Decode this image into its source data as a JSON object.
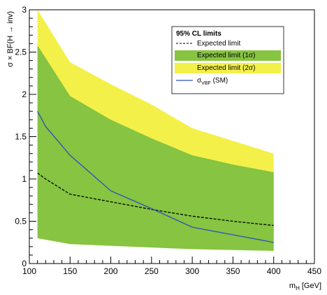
{
  "chart_data": {
    "type": "line",
    "xlabel": "m",
    "xlabel_sub": "H",
    "xlabel_unit": "[GeV]",
    "ylabel": "σ × BF(H → inv)",
    "xlim": [
      100,
      450
    ],
    "ylim": [
      0,
      3
    ],
    "x_ticks": [
      "100",
      "150",
      "200",
      "250",
      "300",
      "350",
      "400",
      "450"
    ],
    "y_ticks": [
      "0",
      "0.5",
      "1",
      "1.5",
      "2",
      "2.5",
      "3"
    ],
    "legend_title": "95% CL limits",
    "legend_position": "top-right",
    "colors": {
      "band_2sigma": "#f4f04a",
      "band_1sigma": "#86c441",
      "expected": "#000000",
      "signal": "#2b4fbf"
    },
    "band_2sigma": {
      "x": [
        110,
        150,
        200,
        250,
        300,
        350,
        400
      ],
      "upper": [
        3.02,
        2.38,
        2.12,
        1.88,
        1.6,
        1.45,
        1.3
      ],
      "lower": [
        0.3,
        0.23,
        0.21,
        0.19,
        0.17,
        0.16,
        0.15
      ]
    },
    "band_1sigma": {
      "x": [
        110,
        150,
        200,
        250,
        300,
        350,
        400
      ],
      "upper": [
        2.58,
        1.98,
        1.7,
        1.48,
        1.28,
        1.17,
        1.08
      ],
      "lower": [
        0.3,
        0.23,
        0.21,
        0.19,
        0.17,
        0.16,
        0.15
      ]
    },
    "series": [
      {
        "name": "Expected limit",
        "x": [
          110,
          120,
          150,
          200,
          250,
          300,
          350,
          400
        ],
        "values": [
          1.07,
          1.0,
          0.82,
          0.73,
          0.64,
          0.56,
          0.5,
          0.45
        ]
      },
      {
        "name": "σ",
        "name_sub": "VBF",
        "name_suffix": " (SM)",
        "x": [
          110,
          120,
          150,
          200,
          250,
          300,
          350,
          400
        ],
        "values": [
          1.8,
          1.62,
          1.28,
          0.86,
          0.65,
          0.43,
          0.34,
          0.25
        ]
      }
    ],
    "legend": [
      {
        "label": "Expected limit",
        "kind": "dashed"
      },
      {
        "label": "Expected limit (1σ)",
        "kind": "band1"
      },
      {
        "label": "Expected limit (2σ)",
        "kind": "band2"
      },
      {
        "label": "σ",
        "sub": "VBF",
        "suffix": " (SM)",
        "kind": "line"
      }
    ]
  }
}
